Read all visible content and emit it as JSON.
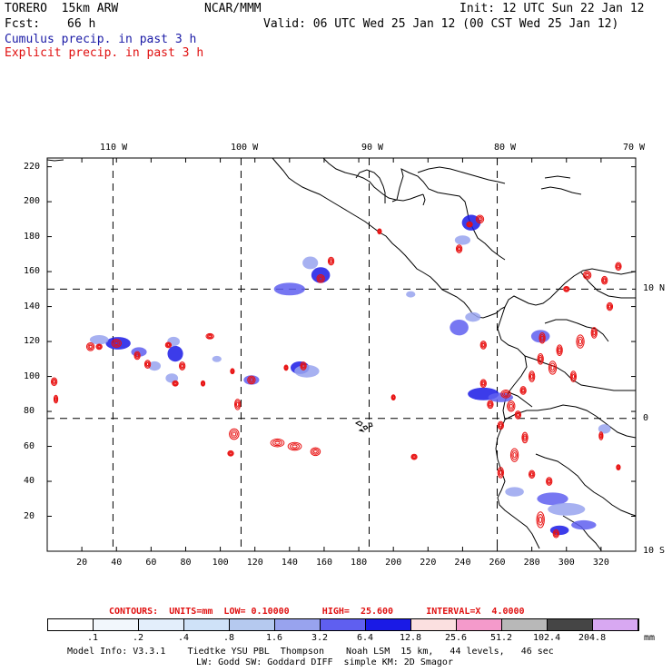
{
  "header": {
    "model": "TORERO  15km ARW",
    "org": "NCAR/MMM",
    "init": "Init: 12 UTC Sun 22 Jan 12",
    "fcst_label": "Fcst:",
    "fcst_value": "66 h",
    "valid": "Valid: 06 UTC Wed 25 Jan 12 (00 CST Wed 25 Jan 12)",
    "cumulus": "Cumulus precip. in past 3 h",
    "explicit": "Explicit precip. in past 3 h"
  },
  "top_lon_labels": [
    "110 W",
    "100 W",
    "90 W",
    "80 W",
    "70 W"
  ],
  "right_lat_labels": [
    "10 N",
    "0",
    "10 S"
  ],
  "y_ticks": [
    "220",
    "200",
    "180",
    "160",
    "140",
    "120",
    "100",
    "80",
    "60",
    "40",
    "20"
  ],
  "x_ticks": [
    "20",
    "40",
    "60",
    "80",
    "100",
    "120",
    "140",
    "160",
    "180",
    "200",
    "220",
    "240",
    "260",
    "280",
    "300",
    "320"
  ],
  "contour_line": {
    "label": "CONTOURS:  UNITS=mm  LOW= 0.10000      HIGH=  25.600      INTERVAL=X  4.0000"
  },
  "color_scale": {
    "labels": [
      ".1",
      ".2",
      ".4",
      ".8",
      "1.6",
      "3.2",
      "6.4",
      "12.8",
      "25.6",
      "51.2",
      "102.4",
      "204.8"
    ],
    "unit": "mm",
    "colors": [
      "#ffffff",
      "#f2f7fc",
      "#e3eefb",
      "#cfe2f8",
      "#b5c9ef",
      "#98a3ee",
      "#5f5ff0",
      "#1a1ae6",
      "#fbe0e0",
      "#f49acb",
      "#b8b8b8",
      "#454545",
      "#d8a8f2"
    ]
  },
  "footer": {
    "line1": "Model Info: V3.3.1    Tiedtke YSU PBL  Thompson    Noah LSM  15 km,   44 levels,   46 sec",
    "line2": "LW: Godd SW: Goddard DIFF  simple KM: 2D Smagor"
  },
  "map": {
    "x_range": [
      0,
      340
    ],
    "y_range": [
      0,
      225
    ],
    "meridians_x": [
      38,
      112,
      186,
      260
    ],
    "equator_y": 76,
    "lat10n_y": 150,
    "explicit_color": "#e81010",
    "cumulus_colors": [
      "#cfe2f8",
      "#98a3ee",
      "#5f5ff0",
      "#1a1ae6"
    ]
  },
  "precip": {
    "explicit_cells": [
      [
        4,
        97,
        3,
        3
      ],
      [
        5,
        87,
        2,
        3
      ],
      [
        25,
        117,
        4,
        3
      ],
      [
        30,
        117,
        3,
        2
      ],
      [
        40,
        119,
        5,
        3
      ],
      [
        52,
        112,
        3,
        3
      ],
      [
        58,
        107,
        3,
        3
      ],
      [
        78,
        106,
        3,
        3
      ],
      [
        74,
        96,
        3,
        2
      ],
      [
        70,
        118,
        3,
        2
      ],
      [
        90,
        96,
        2,
        2
      ],
      [
        94,
        123,
        4,
        2
      ],
      [
        108,
        67,
        5,
        4
      ],
      [
        106,
        56,
        3,
        2
      ],
      [
        110,
        84,
        3,
        4
      ],
      [
        118,
        98,
        4,
        3
      ],
      [
        107,
        103,
        2,
        2
      ],
      [
        133,
        62,
        7,
        3
      ],
      [
        143,
        60,
        7,
        3
      ],
      [
        155,
        57,
        5,
        3
      ],
      [
        148,
        106,
        3,
        3
      ],
      [
        138,
        105,
        2,
        2
      ],
      [
        158,
        156,
        4,
        3
      ],
      [
        164,
        166,
        3,
        3
      ],
      [
        192,
        183,
        2,
        2
      ],
      [
        212,
        54,
        3,
        2
      ],
      [
        238,
        173,
        3,
        3
      ],
      [
        250,
        190,
        4,
        3
      ],
      [
        244,
        187,
        3,
        2
      ],
      [
        252,
        118,
        3,
        3
      ],
      [
        256,
        84,
        3,
        3
      ],
      [
        268,
        83,
        4,
        4
      ],
      [
        272,
        78,
        3,
        3
      ],
      [
        262,
        72,
        3,
        3
      ],
      [
        280,
        100,
        3,
        4
      ],
      [
        285,
        110,
        3,
        4
      ],
      [
        286,
        122,
        3,
        4
      ],
      [
        292,
        105,
        4,
        5
      ],
      [
        296,
        115,
        3,
        4
      ],
      [
        304,
        100,
        3,
        4
      ],
      [
        308,
        120,
        4,
        5
      ],
      [
        316,
        125,
        3,
        4
      ],
      [
        325,
        140,
        3,
        3
      ],
      [
        312,
        158,
        4,
        3
      ],
      [
        322,
        155,
        3,
        3
      ],
      [
        330,
        163,
        3,
        3
      ],
      [
        300,
        150,
        3,
        2
      ],
      [
        276,
        65,
        3,
        4
      ],
      [
        270,
        55,
        4,
        5
      ],
      [
        262,
        45,
        3,
        4
      ],
      [
        280,
        44,
        3,
        3
      ],
      [
        285,
        18,
        4,
        6
      ],
      [
        294,
        10,
        3,
        3
      ],
      [
        290,
        40,
        3,
        3
      ],
      [
        265,
        90,
        5,
        3
      ],
      [
        275,
        92,
        3,
        3
      ],
      [
        252,
        96,
        3,
        3
      ],
      [
        200,
        88,
        2,
        2
      ],
      [
        320,
        66,
        2,
        3
      ],
      [
        330,
        48,
        2,
        2
      ]
    ],
    "cumulus_cells": [
      [
        41,
        119,
        8,
        4,
        3
      ],
      [
        30,
        121,
        6,
        3,
        1
      ],
      [
        53,
        114,
        5,
        3,
        2
      ],
      [
        74,
        113,
        5,
        5,
        3
      ],
      [
        73,
        120,
        4,
        3,
        1
      ],
      [
        118,
        98,
        5,
        3,
        2
      ],
      [
        146,
        105,
        6,
        4,
        3
      ],
      [
        150,
        103,
        8,
        4,
        1
      ],
      [
        158,
        158,
        6,
        5,
        3
      ],
      [
        140,
        150,
        10,
        4,
        2
      ],
      [
        152,
        165,
        5,
        4,
        1
      ],
      [
        252,
        90,
        10,
        4,
        3
      ],
      [
        262,
        88,
        8,
        3,
        2
      ],
      [
        245,
        188,
        6,
        5,
        3
      ],
      [
        240,
        178,
        5,
        3,
        1
      ],
      [
        238,
        128,
        6,
        5,
        2
      ],
      [
        246,
        134,
        5,
        3,
        1
      ],
      [
        285,
        123,
        6,
        4,
        2
      ],
      [
        292,
        30,
        10,
        4,
        2
      ],
      [
        300,
        24,
        12,
        4,
        1
      ],
      [
        296,
        12,
        6,
        3,
        3
      ],
      [
        310,
        15,
        8,
        3,
        2
      ],
      [
        270,
        34,
        6,
        3,
        1
      ],
      [
        322,
        70,
        4,
        3,
        1
      ],
      [
        72,
        99,
        4,
        3,
        1
      ],
      [
        62,
        106,
        4,
        3,
        1
      ],
      [
        98,
        110,
        3,
        2,
        1
      ],
      [
        210,
        147,
        3,
        2,
        1
      ]
    ]
  }
}
